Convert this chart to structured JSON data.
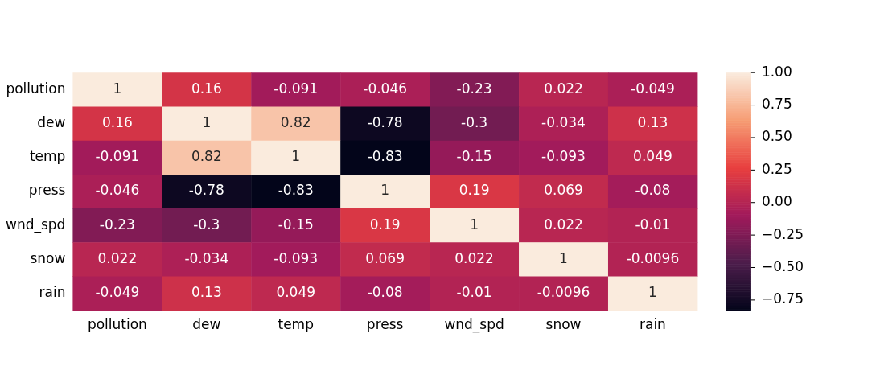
{
  "chart_data": {
    "type": "heatmap",
    "categories": [
      "pollution",
      "dew",
      "temp",
      "press",
      "wnd_spd",
      "snow",
      "rain"
    ],
    "y_categories": [
      "pollution",
      "dew",
      "temp",
      "press",
      "wnd_spd",
      "snow",
      "rain"
    ],
    "cells": [
      [
        1,
        0.16,
        -0.091,
        -0.046,
        -0.23,
        0.022,
        -0.049
      ],
      [
        0.16,
        1,
        0.82,
        -0.78,
        -0.3,
        -0.034,
        0.13
      ],
      [
        -0.091,
        0.82,
        1,
        -0.83,
        -0.15,
        -0.093,
        0.049
      ],
      [
        -0.046,
        -0.78,
        -0.83,
        1,
        0.19,
        0.069,
        -0.08
      ],
      [
        -0.23,
        -0.3,
        -0.15,
        0.19,
        1,
        0.022,
        -0.01
      ],
      [
        0.022,
        -0.034,
        -0.093,
        0.069,
        0.022,
        1,
        -0.0096
      ],
      [
        -0.049,
        0.13,
        0.049,
        -0.08,
        -0.01,
        -0.0096,
        1
      ]
    ],
    "data_labels": true,
    "clim": [
      -0.83,
      1
    ],
    "cticks": [
      {
        "value": -0.75,
        "label": "−0.75"
      },
      {
        "value": -0.5,
        "label": "−0.50"
      },
      {
        "value": -0.25,
        "label": "−0.25"
      },
      {
        "value": 0,
        "label": "0.00"
      },
      {
        "value": 0.25,
        "label": "0.25"
      },
      {
        "value": 0.5,
        "label": "0.50"
      },
      {
        "value": 0.75,
        "label": "0.75"
      },
      {
        "value": 1,
        "label": "1.00"
      }
    ]
  }
}
